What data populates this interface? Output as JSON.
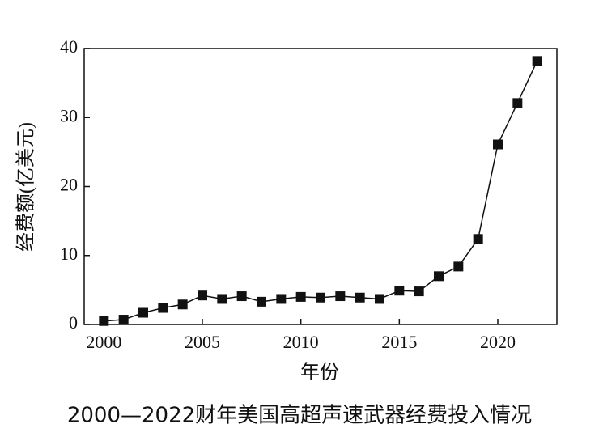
{
  "chart_data": {
    "type": "line",
    "title": "2000—2022财年美国高超声速武器经费投入情况",
    "x_label": "年份",
    "y_label": "经费额(亿美元)",
    "x": [
      2000,
      2001,
      2002,
      2003,
      2004,
      2005,
      2006,
      2007,
      2008,
      2009,
      2010,
      2011,
      2012,
      2013,
      2014,
      2015,
      2016,
      2017,
      2018,
      2019,
      2020,
      2021,
      2022
    ],
    "series": [
      {
        "name": "经费额",
        "color": "#111111",
        "values": [
          0.5,
          0.7,
          1.7,
          2.4,
          2.9,
          4.2,
          3.7,
          4.1,
          3.3,
          3.7,
          4.0,
          3.9,
          4.1,
          3.9,
          3.7,
          4.9,
          4.8,
          7.0,
          8.4,
          12.4,
          26.1,
          32.1,
          38.2
        ]
      }
    ],
    "xlim": [
      1999,
      2023
    ],
    "xticks": [
      2000,
      2005,
      2010,
      2015,
      2020
    ],
    "ylim": [
      0,
      40
    ],
    "yticks": [
      0,
      10,
      20,
      30,
      40
    ]
  }
}
